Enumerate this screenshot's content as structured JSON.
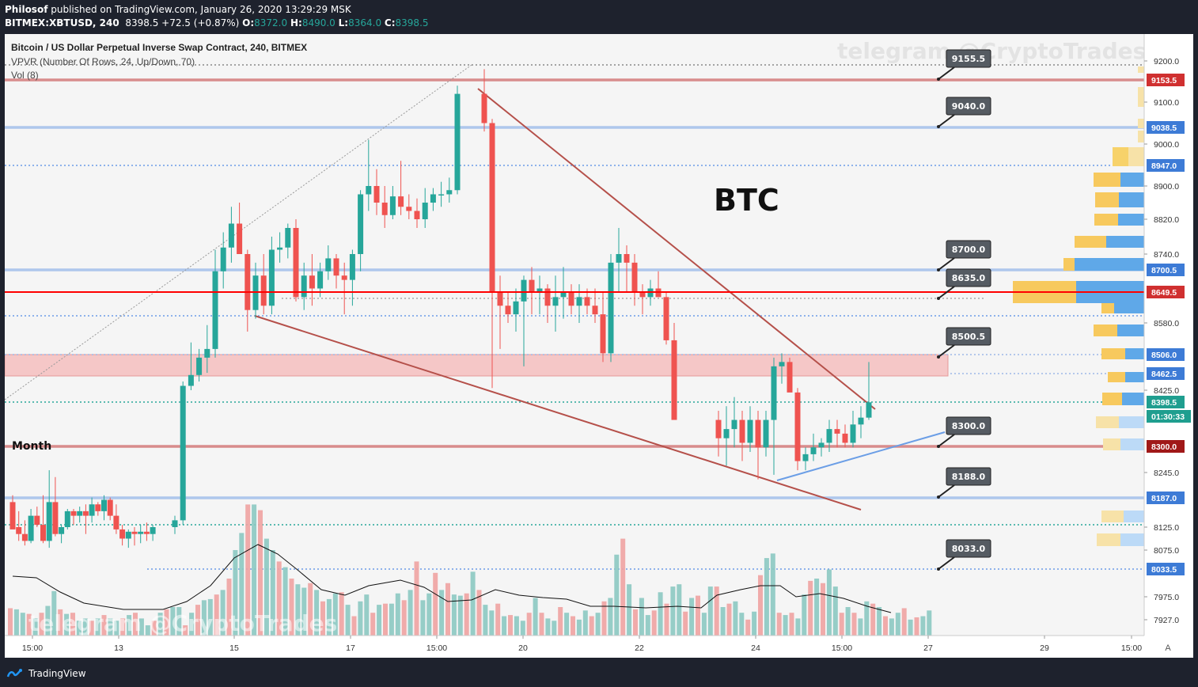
{
  "header": {
    "line1_author": "Philosof",
    "line1_text": " published on TradingView.com, January 26, 2020 13:29:29 MSK",
    "symbol": "BITMEX:XBTUSD, 240",
    "last": "8398.5",
    "change": "+72.5 (+0.87%)",
    "o_label": "O:",
    "o_val": "8372.0",
    "h_label": "H:",
    "h_val": "8490.0",
    "l_label": "L:",
    "l_val": "8364.0",
    "c_label": "C:",
    "c_val": "8398.5"
  },
  "legend": {
    "title": "Bitcoin / US Dollar Perpetual Inverse Swap Contract, 240, BITMEX",
    "vpvr": "VPVR (Number Of Rows, 24, Up/Down, 70)",
    "vol": "Vol (8)"
  },
  "watermark": "telegram @CryptoTrades",
  "annotation_btc": "BTC",
  "annotation_month": "Month",
  "footer": {
    "brand": "TradingView"
  },
  "colors": {
    "up": "#26a69a",
    "down": "#ef5350",
    "level_blue": "#aec7ec",
    "level_red": "#d88c8c",
    "month_line": "#ff0000",
    "zone": "#f4b7b7",
    "countdown": "#1f9e8f"
  },
  "chart_data": {
    "type": "candlestick",
    "y_axis_ticks": [
      "9200.0",
      "9100.0",
      "9000.0",
      "8900.0",
      "8820.0",
      "8740.0",
      "8580.0",
      "8425.0",
      "8245.0",
      "8125.0",
      "8075.0",
      "7975.0",
      "7927.0"
    ],
    "x_axis_ticks": [
      "15:00",
      "13",
      "15",
      "17",
      "15:00",
      "20",
      "22",
      "24",
      "15:00",
      "27",
      "29",
      "15:00"
    ],
    "price_badges": [
      {
        "label": "9153.5",
        "style": "red"
      },
      {
        "label": "9038.5",
        "style": "blue"
      },
      {
        "label": "8947.0",
        "style": "blue"
      },
      {
        "label": "8700.5",
        "style": "blue"
      },
      {
        "label": "8649.5",
        "style": "red"
      },
      {
        "label": "8506.0",
        "style": "blue"
      },
      {
        "label": "8462.5",
        "style": "blue"
      },
      {
        "label": "8398.5",
        "style": "teal"
      },
      {
        "label": "01:30:33",
        "style": "teal"
      },
      {
        "label": "8300.0",
        "style": "darkred"
      },
      {
        "label": "8187.0",
        "style": "blue"
      },
      {
        "label": "8033.5",
        "style": "blue"
      }
    ],
    "callouts": [
      "9155.5",
      "9040.0",
      "8700.0",
      "8635.0",
      "8500.5",
      "8300.0",
      "8188.0",
      "8033.0"
    ],
    "last_price": 8398.5,
    "countdown": "01:30:33",
    "axis_letter": "A"
  }
}
